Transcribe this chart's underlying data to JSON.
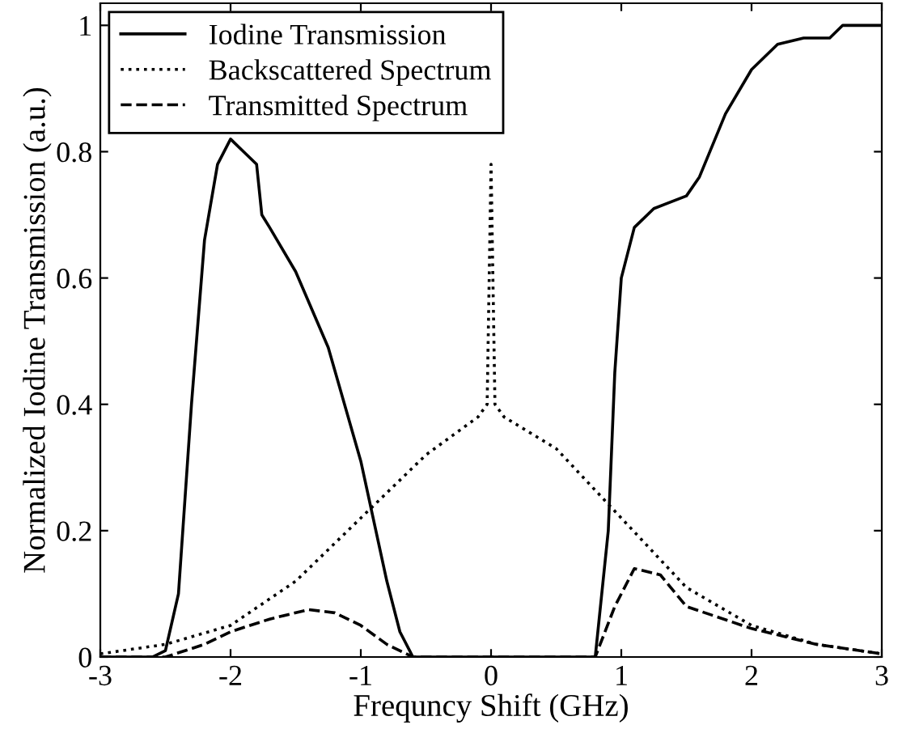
{
  "chart_data": {
    "type": "line",
    "xlabel": "Frequncy Shift (GHz)",
    "ylabel": "Normalized Iodine Transmission (a.u.)",
    "xlim": [
      -3,
      3
    ],
    "ylim": [
      0,
      1.035
    ],
    "xticks": [
      -3,
      -2,
      -1,
      0,
      1,
      2,
      3
    ],
    "yticks": [
      0,
      0.2,
      0.4,
      0.6,
      0.8,
      1
    ],
    "grid": false,
    "legend": "top left",
    "marker": "none",
    "series": [
      {
        "name": "Iodine Transmission",
        "color": "#000000",
        "line_style": "solid",
        "x": [
          -3,
          -2.6,
          -2.5,
          -2.4,
          -2.3,
          -2.2,
          -2.1,
          -2.0,
          -1.9,
          -1.8,
          -1.76,
          -1.7,
          -1.5,
          -1.25,
          -1.0,
          -0.8,
          -0.7,
          -0.6,
          0,
          0.8,
          0.9,
          0.95,
          1.0,
          1.1,
          1.25,
          1.5,
          1.6,
          1.8,
          2.0,
          2.2,
          2.4,
          2.6,
          2.7,
          3
        ],
        "values": [
          0,
          0,
          0.01,
          0.1,
          0.4,
          0.66,
          0.78,
          0.82,
          0.8,
          0.78,
          0.7,
          0.68,
          0.61,
          0.49,
          0.31,
          0.12,
          0.04,
          0,
          0,
          0,
          0.2,
          0.45,
          0.6,
          0.68,
          0.71,
          0.73,
          0.76,
          0.86,
          0.93,
          0.97,
          0.98,
          0.98,
          1.0,
          1.0
        ]
      },
      {
        "name": "Backscattered Spectrum",
        "color": "#000000",
        "line_style": "dotted",
        "x": [
          -3,
          -2.5,
          -2,
          -1.5,
          -1,
          -0.5,
          -0.1,
          -0.03,
          0,
          0.03,
          0.1,
          0.5,
          1,
          1.5,
          2,
          2.5,
          3
        ],
        "values": [
          0.005,
          0.02,
          0.05,
          0.12,
          0.22,
          0.32,
          0.38,
          0.4,
          0.78,
          0.4,
          0.38,
          0.33,
          0.22,
          0.11,
          0.05,
          0.02,
          0.005
        ]
      },
      {
        "name": "Transmitted Spectrum",
        "color": "#000000",
        "line_style": "dashed",
        "x": [
          -3,
          -2.5,
          -2.2,
          -2,
          -1.7,
          -1.4,
          -1.2,
          -1,
          -0.8,
          -0.6,
          0,
          0.8,
          0.95,
          1.1,
          1.3,
          1.5,
          2,
          2.5,
          3
        ],
        "values": [
          0,
          0,
          0.02,
          0.04,
          0.06,
          0.075,
          0.07,
          0.05,
          0.02,
          0,
          0,
          0,
          0.08,
          0.14,
          0.13,
          0.08,
          0.045,
          0.02,
          0.005
        ]
      }
    ]
  }
}
